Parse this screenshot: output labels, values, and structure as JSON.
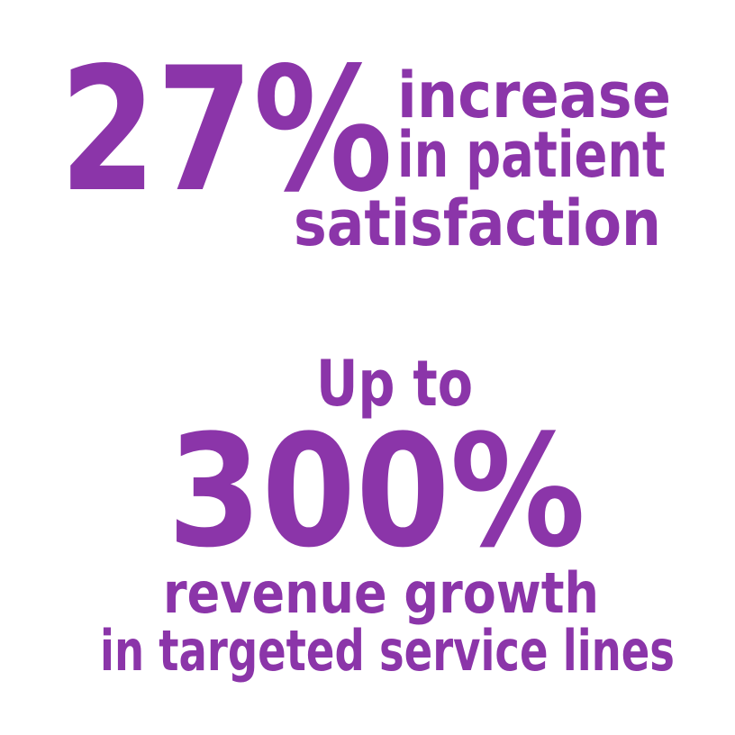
{
  "stats": [
    {
      "value": "27%",
      "lines": [
        "increase",
        "in patient",
        "satisfaction"
      ]
    },
    {
      "prefix": "Up to",
      "value": "300%",
      "lines": [
        "revenue growth",
        "in targeted service lines"
      ]
    }
  ]
}
